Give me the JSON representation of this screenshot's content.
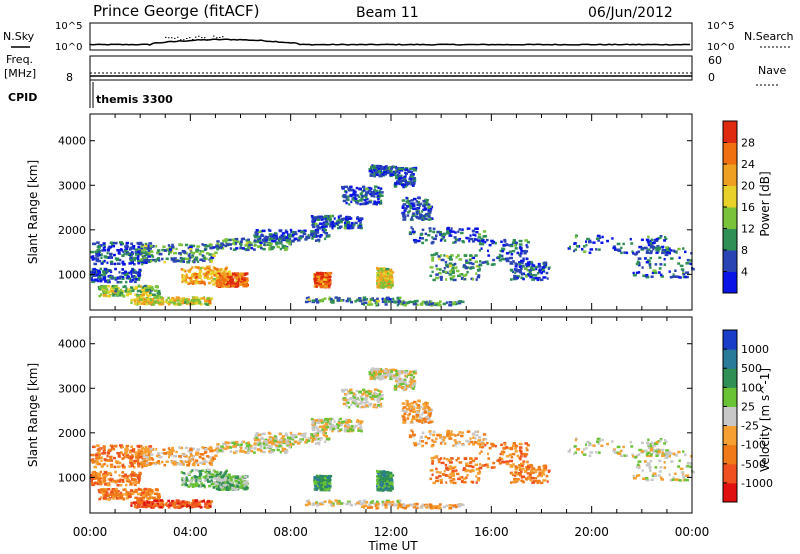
{
  "header": {
    "station": "Prince George (fitACF)",
    "beam": "Beam 11",
    "date": "06/Jun/2012"
  },
  "top_panels": {
    "nsky_label": "N.Sky",
    "nsearch_label": "N.Search",
    "tick_hi": "10^5",
    "tick_lo": "10^0",
    "freq_label_1": "Freq.",
    "freq_label_2": "[MHz]",
    "freq_tick": "8",
    "nave_label": "Nave",
    "nave_tick_hi": "60",
    "nave_tick_lo": "0",
    "cpid_label": "CPID",
    "cpid_value": "themis 3300"
  },
  "chart_data": [
    {
      "type": "heatmap",
      "panel": "power",
      "ylabel": "Slant Range [km]",
      "y_ticks": [
        "1000",
        "2000",
        "3000",
        "4000"
      ],
      "ylim": [
        200,
        4600
      ],
      "xlim": [
        0,
        24
      ],
      "x_tick_labels": [
        "00:00",
        "04:00",
        "08:00",
        "12:00",
        "16:00",
        "20:00",
        "00:00"
      ],
      "colorbar_label": "Power [dB]",
      "colorbar_ticks": [
        "4",
        "8",
        "12",
        "16",
        "20",
        "24",
        "28"
      ],
      "colorbar_colors": [
        "#0a14e6",
        "#2b44b4",
        "#2f8f55",
        "#7ac23a",
        "#e8d22a",
        "#f0a020",
        "#f07010",
        "#e02a10"
      ]
    },
    {
      "type": "heatmap",
      "panel": "velocity",
      "ylabel": "Slant Range [km]",
      "y_ticks": [
        "1000",
        "2000",
        "3000",
        "4000"
      ],
      "ylim": [
        200,
        4600
      ],
      "xlim": [
        0,
        24
      ],
      "x_tick_labels": [
        "00:00",
        "04:00",
        "08:00",
        "12:00",
        "16:00",
        "20:00",
        "00:00"
      ],
      "xlabel": "Time UT",
      "colorbar_label": "Velocity [m s^-1]",
      "colorbar_ticks": [
        "-1000",
        "-500",
        "-100",
        "-25",
        "25",
        "100",
        "500",
        "1000"
      ],
      "colorbar_colors": [
        "#e01010",
        "#f05020",
        "#f07a18",
        "#f5a030",
        "#c8c8c8",
        "#6ac235",
        "#2f8f55",
        "#2a7a9a",
        "#1a3ec8"
      ]
    }
  ]
}
